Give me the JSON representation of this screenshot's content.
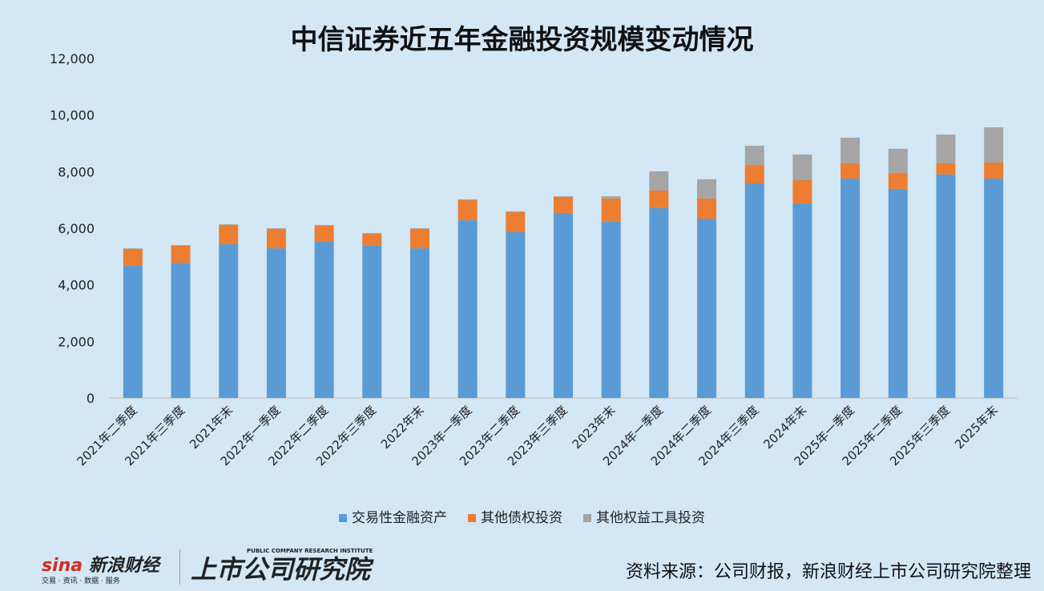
{
  "title": "中信证券近五年金融投资规模变动情况",
  "chart_data": {
    "type": "bar",
    "stacked": true,
    "title": "中信证券近五年金融投资规模变动情况",
    "ylim": [
      0,
      12000
    ],
    "yticks": [
      "0",
      "2,000",
      "4,000",
      "6,000",
      "8,000",
      "10,000",
      "12,000"
    ],
    "ytick_values": [
      0,
      2000,
      4000,
      6000,
      8000,
      10000,
      12000
    ],
    "categories": [
      "2021年二季度",
      "2021年三季度",
      "2021年末",
      "2022年一季度",
      "2022年二季度",
      "2022年三季度",
      "2022年末",
      "2023年一季度",
      "2023年二季度",
      "2023年三季度",
      "2023年末",
      "2024年一季度",
      "2024年二季度",
      "2024年三季度",
      "2024年末",
      "2025年一季度",
      "2025年二季度",
      "2025年三季度",
      "2025年末"
    ],
    "series": [
      {
        "name": "交易性金融资产",
        "color": "#5b9bd5",
        "values": [
          4670,
          4780,
          5435,
          5290,
          5520,
          5380,
          5290,
          6280,
          5860,
          6540,
          6230,
          6710,
          6340,
          7585,
          6880,
          7755,
          7390,
          7900,
          7755
        ]
      },
      {
        "name": "其他债权投资",
        "color": "#ed7d31",
        "values": [
          595,
          600,
          680,
          680,
          565,
          420,
          680,
          710,
          705,
          565,
          820,
          620,
          710,
          650,
          820,
          540,
          565,
          395,
          565
        ]
      },
      {
        "name": "其他权益工具投资",
        "color": "#a5a5a5",
        "values": [
          25,
          25,
          25,
          30,
          30,
          30,
          30,
          30,
          30,
          25,
          80,
          680,
          680,
          680,
          905,
          905,
          850,
          1015,
          1245
        ]
      }
    ],
    "legend_position": "bottom"
  },
  "footer": {
    "logo1": "新浪财经",
    "logo1_sub": "交易 · 资讯 · 数据 · 服务",
    "logo2": "上市公司研究院",
    "logo2_sub": "PUBLIC COMPANY RESEARCH INSTITUTE",
    "source": "资料来源：公司财报，新浪财经上市公司研究院整理"
  }
}
